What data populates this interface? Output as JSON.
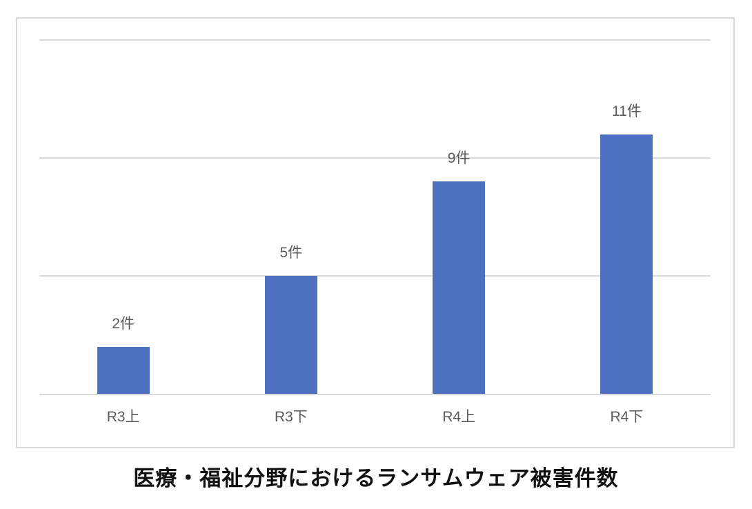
{
  "chart_data": {
    "type": "bar",
    "title": "医療・福祉分野におけるランサムウェア被害件数",
    "categories": [
      "R3上",
      "R3下",
      "R4上",
      "R4下"
    ],
    "values": [
      2,
      5,
      9,
      11
    ],
    "value_labels": [
      "2件",
      "5件",
      "9件",
      "11件"
    ],
    "unit": "件",
    "xlabel": "",
    "ylabel": "",
    "ylim": [
      0,
      15
    ],
    "gridline_values": [
      5,
      10,
      15
    ],
    "grid": true,
    "legend": false,
    "axis_ticks_visible": false,
    "colors": {
      "bar": "#4D71C0",
      "grid": "#D9D9D9",
      "axis": "#D9D9D9",
      "labels": "#595959",
      "title": "#111111",
      "background": "#FFFFFF",
      "box_border": "#D9D9D9"
    }
  }
}
